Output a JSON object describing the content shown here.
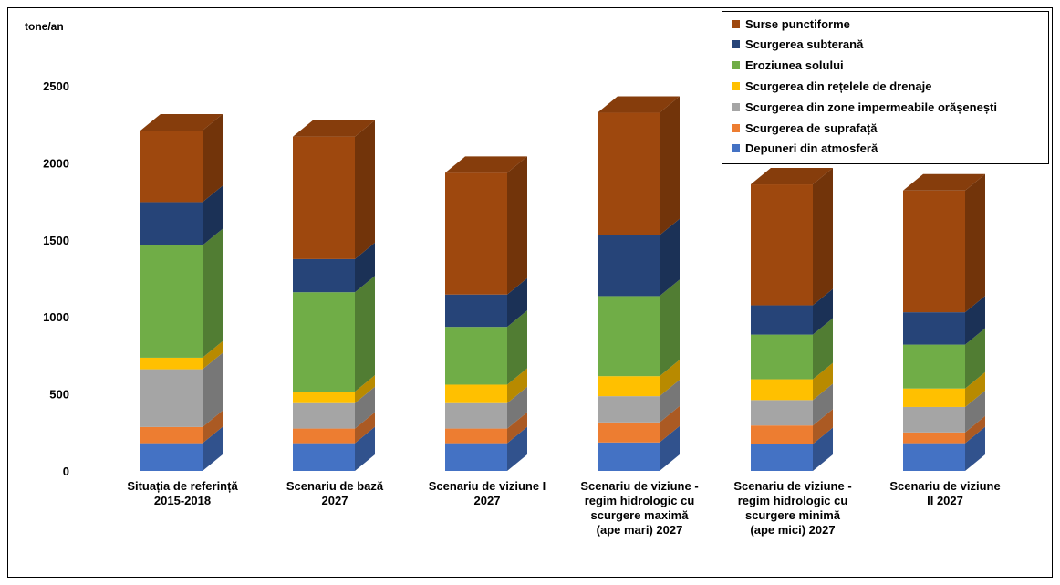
{
  "chart_data": {
    "type": "bar",
    "stacked": true,
    "style": "3d",
    "ylabel": "tone/an",
    "ylim": [
      0,
      2500
    ],
    "yticks": [
      0,
      500,
      1000,
      1500,
      2000,
      2500
    ],
    "grid": false,
    "legend_position": "top-right",
    "categories": [
      [
        "Situația de referință",
        "2015-2018"
      ],
      [
        "Scenariu de bază",
        "2027"
      ],
      [
        "Scenariu de viziune I",
        "2027"
      ],
      [
        "Scenariu de viziune -",
        "regim hidrologic cu",
        "scurgere maximă",
        "(ape mari) 2027"
      ],
      [
        "Scenariu de viziune -",
        "regim hidrologic cu",
        "scurgere minimă",
        "(ape mici) 2027"
      ],
      [
        "Scenariu de viziune",
        "II 2027"
      ]
    ],
    "series": [
      {
        "name": "Depuneri din atmosferă",
        "color": "#4472C4",
        "values": [
          180,
          180,
          180,
          185,
          175,
          180
        ]
      },
      {
        "name": "Scurgerea de suprafață",
        "color": "#ED7D31",
        "values": [
          105,
          95,
          95,
          130,
          120,
          70
        ]
      },
      {
        "name": "Scurgerea din zone impermeabile orășenești",
        "color": "#A5A5A5",
        "values": [
          375,
          165,
          165,
          170,
          165,
          165
        ]
      },
      {
        "name": "Scurgerea din rețelele de drenaje",
        "color": "#FFC000",
        "values": [
          75,
          75,
          120,
          130,
          135,
          120
        ]
      },
      {
        "name": "Eroziunea solului",
        "color": "#70AD47",
        "values": [
          730,
          645,
          375,
          520,
          290,
          285
        ]
      },
      {
        "name": "Scurgerea subterană",
        "color": "#264478",
        "values": [
          280,
          215,
          210,
          395,
          190,
          210
        ]
      },
      {
        "name": "Surse punctiforme",
        "color": "#9E480E",
        "values": [
          465,
          795,
          790,
          795,
          785,
          790
        ]
      }
    ]
  }
}
